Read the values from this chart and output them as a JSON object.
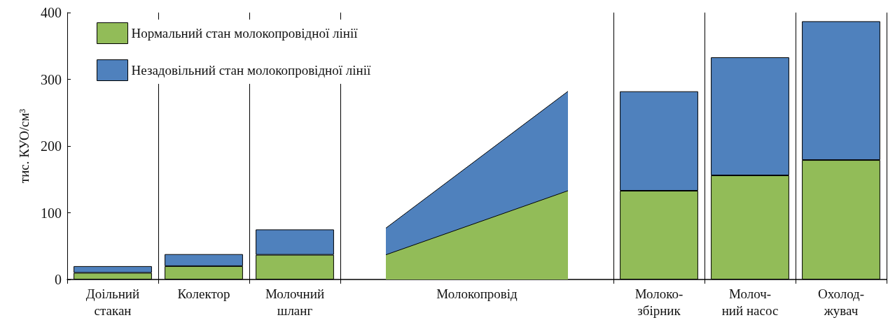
{
  "chart_data": {
    "type": "bar",
    "stacked": true,
    "ylabel": "тис. КУО/см³",
    "ylim": [
      0,
      400
    ],
    "yticks": [
      0,
      100,
      200,
      300,
      400
    ],
    "grid": "x",
    "legend": "top left",
    "categories": [
      "Доільний стакан",
      "Колектор",
      "Молочний шланг",
      null,
      "Молокопровід",
      null,
      "Молоко-збірник",
      "Молоч-ний насос",
      "Охолод-жувач"
    ],
    "series": [
      {
        "name": "Нормальний стан молокопровідної лінії",
        "color": "#92bc58",
        "values": [
          10,
          20,
          37,
          null,
          null,
          null,
          133,
          156,
          179
        ]
      },
      {
        "name": "Незадовільний стан молокопровідної лінії",
        "color": "#4f81bd",
        "values": [
          10,
          18,
          38,
          null,
          null,
          null,
          149,
          177,
          208
        ]
      },
      {
        "type": "area",
        "color": "#92bc58",
        "values": [
          null,
          null,
          null,
          37,
          null,
          133,
          null,
          null,
          null
        ]
      },
      {
        "type": "area",
        "color": "#4f81bd",
        "values": [
          null,
          null,
          null,
          40,
          null,
          149,
          null,
          null,
          null
        ]
      }
    ]
  }
}
